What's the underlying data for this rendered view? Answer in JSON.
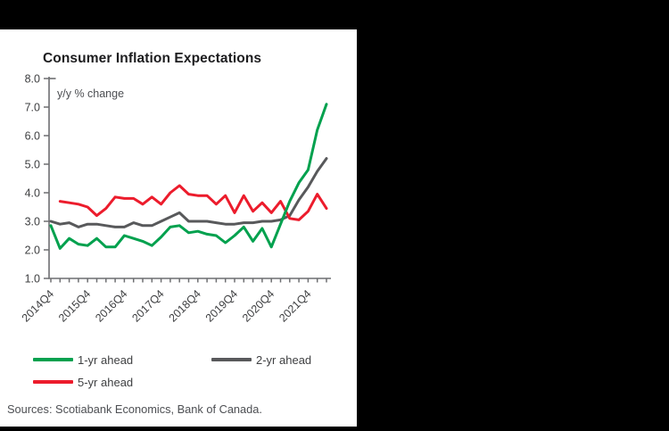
{
  "header": {
    "title": "Consumer Inflation Expectations"
  },
  "chart_data": {
    "type": "line",
    "title": "Consumer Inflation Expectations",
    "annotation": "y/y % change",
    "grid": false,
    "ylim": [
      1.0,
      8.0
    ],
    "y_ticks": [
      8,
      7,
      6,
      5,
      4,
      3,
      2,
      1
    ],
    "x_tick_labels": [
      "2014Q4",
      "2015Q4",
      "2016Q4",
      "2017Q4",
      "2018Q4",
      "2019Q4",
      "2020Q4",
      "2021Q4"
    ],
    "x_label_every": 4,
    "legend_position": "bottom-left-two-columns",
    "categories": [
      "2014Q4",
      "2015Q1",
      "2015Q2",
      "2015Q3",
      "2015Q4",
      "2016Q1",
      "2016Q2",
      "2016Q3",
      "2016Q4",
      "2017Q1",
      "2017Q2",
      "2017Q3",
      "2017Q4",
      "2018Q1",
      "2018Q2",
      "2018Q3",
      "2018Q4",
      "2019Q1",
      "2019Q2",
      "2019Q3",
      "2019Q4",
      "2020Q1",
      "2020Q2",
      "2020Q3",
      "2020Q4",
      "2021Q1",
      "2021Q2",
      "2021Q3",
      "2021Q4",
      "2022Q1",
      "2022Q2"
    ],
    "series": [
      {
        "name": "1-yr ahead",
        "color": "#00a14e",
        "values": [
          2.85,
          2.05,
          2.4,
          2.2,
          2.15,
          2.4,
          2.1,
          2.1,
          2.5,
          2.4,
          2.3,
          2.15,
          2.45,
          2.8,
          2.85,
          2.6,
          2.65,
          2.55,
          2.5,
          2.25,
          2.5,
          2.8,
          2.3,
          2.75,
          2.1,
          2.9,
          3.7,
          4.35,
          4.8,
          6.2,
          7.1
        ]
      },
      {
        "name": "2-yr ahead",
        "color": "#58595b",
        "values": [
          3.0,
          2.9,
          2.95,
          2.8,
          2.9,
          2.9,
          2.85,
          2.8,
          2.8,
          2.95,
          2.85,
          2.85,
          3.0,
          3.15,
          3.3,
          3.0,
          3.0,
          3.0,
          2.95,
          2.9,
          2.9,
          2.95,
          2.95,
          3.0,
          3.0,
          3.05,
          3.2,
          3.75,
          4.2,
          4.75,
          5.2
        ]
      },
      {
        "name": "5-yr ahead",
        "color": "#ec1c2c",
        "values": [
          null,
          3.7,
          3.65,
          3.6,
          3.5,
          3.2,
          3.45,
          3.85,
          3.8,
          3.8,
          3.6,
          3.85,
          3.6,
          4.0,
          4.25,
          3.95,
          3.9,
          3.9,
          3.6,
          3.9,
          3.3,
          3.9,
          3.35,
          3.65,
          3.3,
          3.7,
          3.1,
          3.05,
          3.35,
          3.95,
          3.45
        ]
      }
    ]
  },
  "legend": {
    "items": [
      {
        "label": "1-yr ahead",
        "color": "#00a14e"
      },
      {
        "label": "2-yr ahead",
        "color": "#58595b"
      },
      {
        "label": "5-yr ahead",
        "color": "#ec1c2c"
      }
    ]
  },
  "footer": {
    "sources": "Sources: Scotiabank Economics, Bank of Canada."
  }
}
